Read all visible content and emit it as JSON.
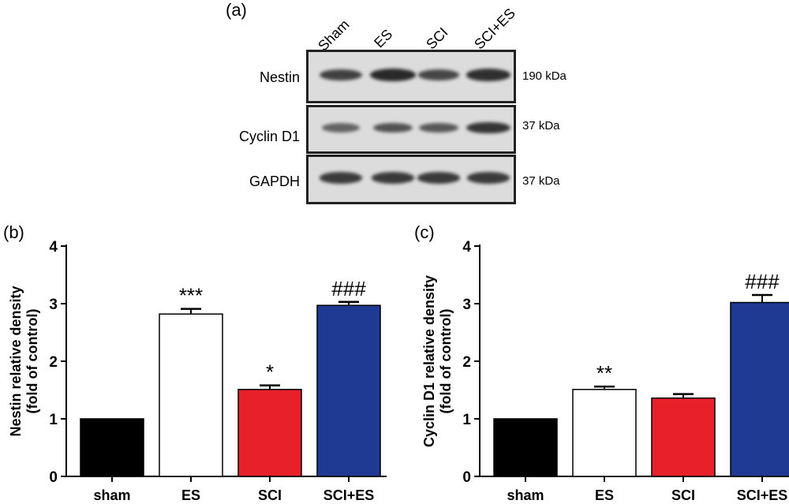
{
  "blot": {
    "panel": "(a)",
    "lanes": [
      "Sham",
      "ES",
      "SCI",
      "SCI+ES"
    ],
    "rows": [
      {
        "protein": "Nestin",
        "size": "190 kDa",
        "intensity": [
          0.75,
          0.95,
          0.7,
          0.9
        ]
      },
      {
        "protein": "Cyclin D1",
        "size": "37 kDa",
        "intensity": [
          0.45,
          0.6,
          0.55,
          0.85
        ]
      },
      {
        "protein": "GAPDH",
        "size": "37 kDa",
        "intensity": [
          0.8,
          0.8,
          0.8,
          0.8
        ]
      }
    ],
    "band_color": "#1a1a1a"
  },
  "chart_data": [
    {
      "type": "bar",
      "panel": "(b)",
      "categories": [
        "sham",
        "ES",
        "SCI",
        "SCI+ES"
      ],
      "values": [
        1.0,
        2.82,
        1.51,
        2.97
      ],
      "errors": [
        0.0,
        0.09,
        0.07,
        0.06
      ],
      "annotations": [
        "",
        "***",
        "*",
        "###"
      ],
      "colors": [
        "#000000",
        "#ffffff",
        "#e8202a",
        "#1f3a93"
      ],
      "ylabel_line1": "Nestin relative density",
      "ylabel_line2": "(fold of control)",
      "ylim": [
        0,
        4
      ],
      "yticks": [
        "0",
        "1",
        "2",
        "3",
        "4"
      ]
    },
    {
      "type": "bar",
      "panel": "(c)",
      "categories": [
        "sham",
        "ES",
        "SCI",
        "SCI+ES"
      ],
      "values": [
        1.0,
        1.51,
        1.36,
        3.02
      ],
      "errors": [
        0.0,
        0.05,
        0.07,
        0.13
      ],
      "annotations": [
        "",
        "**",
        "",
        "###"
      ],
      "colors": [
        "#000000",
        "#ffffff",
        "#e8202a",
        "#1f3a93"
      ],
      "ylabel_line1": "Cyclin D1 relative density",
      "ylabel_line2": "(fold of control)",
      "ylim": [
        0,
        4
      ],
      "yticks": [
        "0",
        "1",
        "2",
        "3",
        "4"
      ]
    }
  ]
}
